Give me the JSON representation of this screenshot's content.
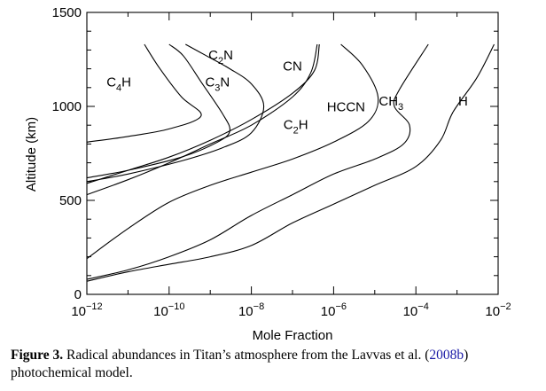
{
  "caption": {
    "label": "Figure 3.",
    "text_before_cite": " Radical abundances in Titan’s atmosphere from the Lavvas et al. (",
    "cite": "2008b",
    "text_after_cite": ") photochemical model."
  },
  "chart_data": {
    "type": "line",
    "title": "",
    "xlabel": "Mole Fraction",
    "ylabel": "Altitude (km)",
    "xscale": "log",
    "xlim": [
      1e-12,
      0.01
    ],
    "ylim": [
      0,
      1500
    ],
    "x_ticks": [
      {
        "value": 1e-12,
        "base": "10",
        "exp": "−12"
      },
      {
        "value": 1e-10,
        "base": "10",
        "exp": "−10"
      },
      {
        "value": 1e-08,
        "base": "10",
        "exp": "−8"
      },
      {
        "value": 1e-06,
        "base": "10",
        "exp": "−6"
      },
      {
        "value": 0.0001,
        "base": "10",
        "exp": "−4"
      },
      {
        "value": 0.01,
        "base": "10",
        "exp": "−2"
      }
    ],
    "y_ticks": [
      0,
      500,
      1000,
      1500
    ],
    "grid": false,
    "series": [
      {
        "name": "C4H",
        "x": [
          1e-12,
          1e-11,
          1e-10,
          6e-10,
          2e-10,
          6e-11,
          2.5e-11
        ],
        "y": [
          810,
          840,
          880,
          950,
          1050,
          1200,
          1330
        ]
      },
      {
        "name": "C3N",
        "x": [
          1e-12,
          1e-11,
          2e-10,
          1.5e-09,
          3e-09,
          2e-09,
          6e-10,
          2.2e-10,
          1e-10
        ],
        "y": [
          620,
          660,
          730,
          810,
          870,
          960,
          1130,
          1270,
          1330
        ]
      },
      {
        "name": "C2N",
        "x": [
          1e-12,
          1e-11,
          2e-10,
          2e-09,
          1e-08,
          2e-08,
          1e-08,
          3e-09,
          8e-10,
          2.5e-10
        ],
        "y": [
          600,
          640,
          710,
          780,
          860,
          1000,
          1120,
          1200,
          1270,
          1330
        ]
      },
      {
        "name": "C2H",
        "x": [
          1e-12,
          1e-11,
          1e-10,
          1e-09,
          1e-08,
          1e-07,
          2.8e-07,
          4e-07
        ],
        "y": [
          530,
          610,
          700,
          800,
          900,
          1050,
          1180,
          1330
        ]
      },
      {
        "name": "CN",
        "x": [
          1e-12,
          1e-11,
          1e-10,
          1e-09,
          1e-08,
          1e-07,
          3.4e-07,
          4.5e-07
        ],
        "y": [
          590,
          660,
          730,
          820,
          930,
          1070,
          1190,
          1330
        ]
      },
      {
        "name": "HCCN",
        "x": [
          1e-12,
          1e-11,
          1e-10,
          1e-09,
          1e-08,
          1e-07,
          1e-06,
          7e-06,
          1.2e-05,
          5e-06,
          1.5e-06
        ],
        "y": [
          190,
          350,
          490,
          580,
          650,
          720,
          810,
          920,
          1050,
          1220,
          1330
        ]
      },
      {
        "name": "CH3",
        "x": [
          1e-12,
          1e-11,
          1e-10,
          1e-09,
          1e-08,
          1e-07,
          1e-06,
          1e-05,
          5e-05,
          7e-05,
          3e-05,
          4e-05,
          0.0002
        ],
        "y": [
          80,
          130,
          200,
          290,
          420,
          530,
          640,
          720,
          800,
          900,
          1000,
          1090,
          1330
        ]
      },
      {
        "name": "H",
        "x": [
          1e-12,
          1e-11,
          1e-10,
          1e-09,
          1e-08,
          1e-07,
          1e-06,
          1e-05,
          0.0001,
          0.0004,
          0.0008,
          0.003,
          0.008
        ],
        "y": [
          70,
          120,
          160,
          200,
          260,
          380,
          480,
          580,
          680,
          820,
          970,
          1150,
          1330
        ]
      }
    ],
    "curve_labels": [
      {
        "series": "C4H",
        "main": "C",
        "sub": "4",
        "tail": "H",
        "at_x": 6e-12,
        "at_y": 1105
      },
      {
        "series": "C3N",
        "main": "C",
        "sub": "3",
        "tail": "N",
        "at_x": 1.5e-09,
        "at_y": 1105
      },
      {
        "series": "C2N",
        "main": "C",
        "sub": "2",
        "tail": "N",
        "at_x": 1.8e-09,
        "at_y": 1250
      },
      {
        "series": "CN",
        "main": "CN",
        "sub": "",
        "tail": "",
        "at_x": 1e-07,
        "at_y": 1190
      },
      {
        "series": "C2H",
        "main": "C",
        "sub": "2",
        "tail": "H",
        "at_x": 1.2e-07,
        "at_y": 880
      },
      {
        "series": "HCCN",
        "main": "HCCN",
        "sub": "",
        "tail": "",
        "at_x": 2e-06,
        "at_y": 975
      },
      {
        "series": "CH3",
        "main": "CH",
        "sub": "3",
        "tail": "",
        "at_x": 2.5e-05,
        "at_y": 1005
      },
      {
        "series": "H",
        "main": "H",
        "sub": "",
        "tail": "",
        "at_x": 0.0014,
        "at_y": 1005
      }
    ]
  }
}
